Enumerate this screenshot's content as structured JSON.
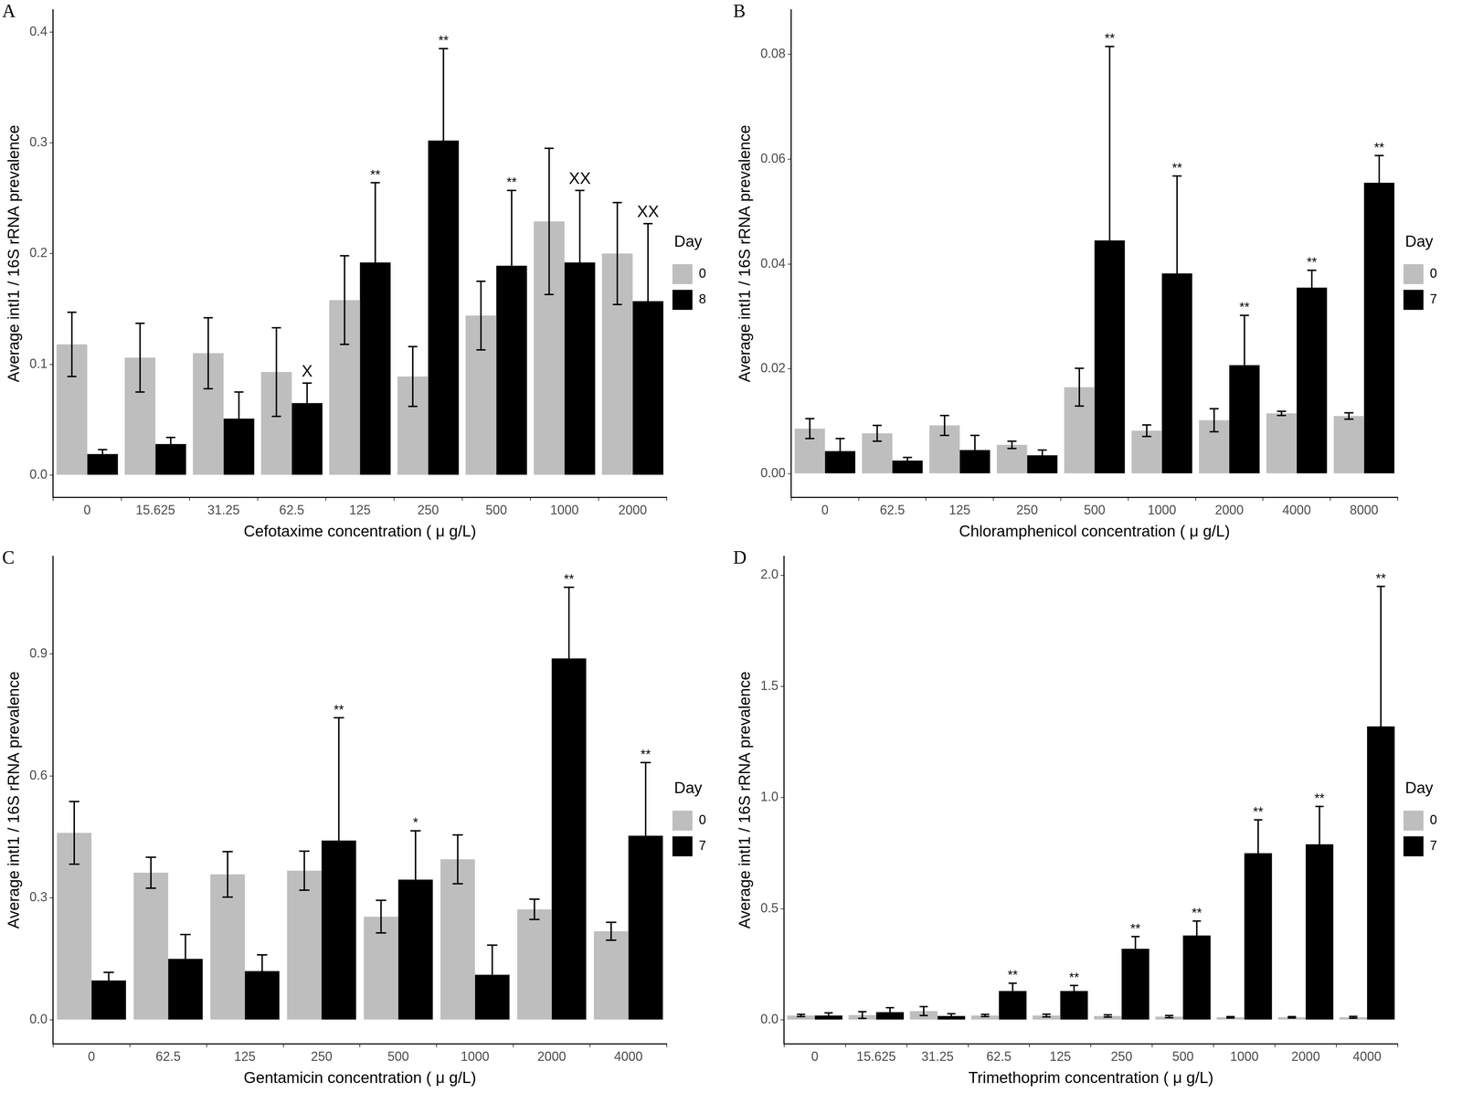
{
  "chart_data": [
    {
      "type": "bar",
      "title": "A",
      "x_label": "Cefotaxime concentration ( μ g/L)",
      "y_label": "Average intI1 / 16S rRNA prevalence",
      "categories": [
        "0",
        "15.625",
        "31.25",
        "62.5",
        "125",
        "250",
        "500",
        "1000",
        "2000"
      ],
      "series": [
        {
          "name": "0",
          "color": "#bebebe",
          "values": [
            0.118,
            0.106,
            0.11,
            0.093,
            0.158,
            0.089,
            0.144,
            0.229,
            0.2
          ],
          "errors": [
            0.029,
            0.031,
            0.032,
            0.04,
            0.04,
            0.027,
            0.031,
            0.066,
            0.046
          ],
          "annotations": [
            null,
            null,
            null,
            null,
            null,
            null,
            null,
            null,
            null
          ]
        },
        {
          "name": "8",
          "color": "#000000",
          "values": [
            0.019,
            0.028,
            0.051,
            0.065,
            0.192,
            0.302,
            0.189,
            0.192,
            0.157
          ],
          "errors": [
            0.004,
            0.006,
            0.024,
            0.018,
            0.072,
            0.083,
            0.068,
            0.065,
            0.07
          ],
          "annotations": [
            null,
            null,
            null,
            "X",
            "**",
            "**",
            "**",
            "XX",
            "XX"
          ]
        }
      ],
      "ylim": [
        -0.02,
        0.42
      ],
      "yticks": [
        {
          "value": 0,
          "label": "0.0"
        },
        0.1,
        0.2,
        0.3,
        0.4
      ],
      "legend": "right",
      "legend_title": "Day",
      "grid": false
    },
    {
      "type": "bar",
      "title": "B",
      "x_label": "Chloramphenicol concentration ( μ g/L)",
      "y_label": "Average intI1 / 16S rRNA prevalence",
      "categories": [
        "0",
        "62.5",
        "125",
        "250",
        "500",
        "1000",
        "2000",
        "4000",
        "8000"
      ],
      "series": [
        {
          "name": "0",
          "color": "#bebebe",
          "values": [
            0.0086,
            0.0077,
            0.0092,
            0.0055,
            0.0165,
            0.0082,
            0.0102,
            0.0115,
            0.011
          ],
          "errors": [
            0.0019,
            0.0015,
            0.0019,
            0.0007,
            0.0036,
            0.0011,
            0.0022,
            0.0004,
            0.0006
          ],
          "annotations": [
            null,
            null,
            null,
            null,
            null,
            null,
            null,
            null,
            null
          ]
        },
        {
          "name": "7",
          "color": "#000000",
          "values": [
            0.0043,
            0.0025,
            0.0045,
            0.0035,
            0.0445,
            0.0382,
            0.0207,
            0.0355,
            0.0555
          ],
          "errors": [
            0.0024,
            0.0006,
            0.0028,
            0.001,
            0.037,
            0.0186,
            0.0095,
            0.0033,
            0.0052
          ],
          "annotations": [
            null,
            null,
            null,
            null,
            "**",
            "**",
            "**",
            "**",
            "**"
          ]
        }
      ],
      "ylim": [
        -0.0045,
        0.0885
      ],
      "yticks": [
        {
          "value": 0,
          "label": "0.00"
        },
        0.02,
        0.04,
        0.06,
        0.08
      ],
      "legend": "right",
      "legend_title": "Day",
      "grid": false
    },
    {
      "type": "bar",
      "title": "C",
      "x_label": "Gentamicin concentration ( μ g/L)",
      "y_label": "Average intI1 / 16S rRNA prevalence",
      "categories": [
        "0",
        "62.5",
        "125",
        "250",
        "500",
        "1000",
        "2000",
        "4000"
      ],
      "series": [
        {
          "name": "0",
          "color": "#bebebe",
          "values": [
            0.46,
            0.362,
            0.358,
            0.367,
            0.254,
            0.395,
            0.272,
            0.218
          ],
          "errors": [
            0.077,
            0.038,
            0.056,
            0.048,
            0.04,
            0.06,
            0.025,
            0.022
          ],
          "annotations": [
            null,
            null,
            null,
            null,
            null,
            null,
            null,
            null
          ]
        },
        {
          "name": "7",
          "color": "#000000",
          "values": [
            0.097,
            0.15,
            0.12,
            0.441,
            0.345,
            0.111,
            0.889,
            0.453
          ],
          "errors": [
            0.02,
            0.06,
            0.04,
            0.302,
            0.12,
            0.073,
            0.175,
            0.18
          ],
          "annotations": [
            null,
            null,
            null,
            "**",
            "*",
            null,
            "**",
            "**"
          ]
        }
      ],
      "ylim": [
        -0.0586,
        1.14
      ],
      "yticks": [
        {
          "value": 0,
          "label": "0.0"
        },
        0.3,
        0.6,
        0.9
      ],
      "legend": "right",
      "legend_title": "Day",
      "grid": false
    },
    {
      "type": "bar",
      "title": "D",
      "x_label": "Trimethoprim concentration ( μ g/L)",
      "y_label": "Average intI1 / 16S rRNA prevalence",
      "categories": [
        "0",
        "15.625",
        "31.25",
        "62.5",
        "125",
        "250",
        "500",
        "1000",
        "2000",
        "4000"
      ],
      "series": [
        {
          "name": "0",
          "color": "#bebebe",
          "values": [
            0.02,
            0.022,
            0.04,
            0.02,
            0.02,
            0.018,
            0.015,
            0.012,
            0.012,
            0.012
          ],
          "errors": [
            0.005,
            0.015,
            0.02,
            0.005,
            0.006,
            0.005,
            0.005,
            0.003,
            0.003,
            0.004
          ],
          "annotations": [
            null,
            null,
            null,
            null,
            null,
            null,
            null,
            null,
            null,
            null
          ]
        },
        {
          "name": "7",
          "color": "#000000",
          "values": [
            0.02,
            0.035,
            0.018,
            0.13,
            0.13,
            0.32,
            0.38,
            0.75,
            0.79,
            1.32
          ],
          "errors": [
            0.012,
            0.02,
            0.01,
            0.035,
            0.025,
            0.055,
            0.065,
            0.15,
            0.17,
            0.63
          ],
          "annotations": [
            null,
            null,
            null,
            "**",
            "**",
            "**",
            "**",
            "**",
            "**",
            "**"
          ]
        }
      ],
      "ylim": [
        -0.107,
        2.085
      ],
      "yticks": [
        {
          "value": 0,
          "label": "0.0"
        },
        0.5,
        {
          "value": 1,
          "label": "1.0"
        },
        1.5,
        {
          "value": 2,
          "label": "2.0"
        }
      ],
      "legend": "right",
      "legend_title": "Day",
      "grid": false
    }
  ]
}
